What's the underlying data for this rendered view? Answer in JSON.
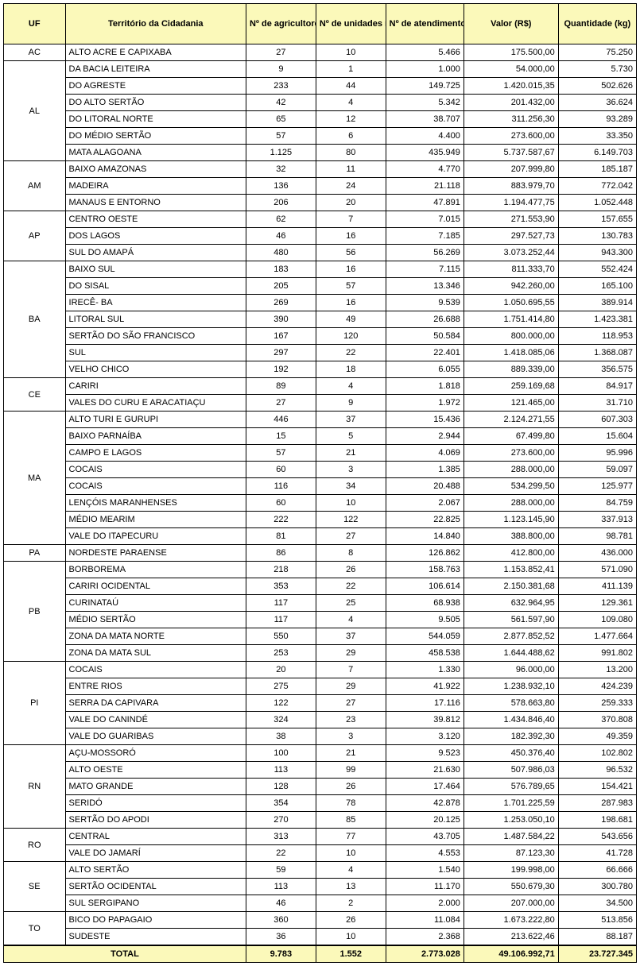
{
  "headers": {
    "uf": "UF",
    "territorio": "Território da Cidadania",
    "agricultores": "Nº de agricultores",
    "unidades": "Nº de unidades recebedoras",
    "atendimentos": "Nº de atendimentos",
    "valor": "Valor (R$)",
    "quantidade": "Quantidade (kg)"
  },
  "groups": [
    {
      "uf": "AC",
      "rows": [
        {
          "ter": "ALTO ACRE E CAPIXABA",
          "ag": "27",
          "un": "10",
          "at": "5.466",
          "va": "175.500,00",
          "qt": "75.250"
        }
      ]
    },
    {
      "uf": "AL",
      "rows": [
        {
          "ter": "DA BACIA LEITEIRA",
          "ag": "9",
          "un": "1",
          "at": "1.000",
          "va": "54.000,00",
          "qt": "5.730"
        },
        {
          "ter": "DO AGRESTE",
          "ag": "233",
          "un": "44",
          "at": "149.725",
          "va": "1.420.015,35",
          "qt": "502.626"
        },
        {
          "ter": "DO ALTO SERTÃO",
          "ag": "42",
          "un": "4",
          "at": "5.342",
          "va": "201.432,00",
          "qt": "36.624"
        },
        {
          "ter": "DO LITORAL NORTE",
          "ag": "65",
          "un": "12",
          "at": "38.707",
          "va": "311.256,30",
          "qt": "93.289"
        },
        {
          "ter": "DO MÉDIO SERTÃO",
          "ag": "57",
          "un": "6",
          "at": "4.400",
          "va": "273.600,00",
          "qt": "33.350"
        },
        {
          "ter": "MATA ALAGOANA",
          "ag": "1.125",
          "un": "80",
          "at": "435.949",
          "va": "5.737.587,67",
          "qt": "6.149.703"
        }
      ]
    },
    {
      "uf": "AM",
      "rows": [
        {
          "ter": "BAIXO AMAZONAS",
          "ag": "32",
          "un": "11",
          "at": "4.770",
          "va": "207.999,80",
          "qt": "185.187"
        },
        {
          "ter": "MADEIRA",
          "ag": "136",
          "un": "24",
          "at": "21.118",
          "va": "883.979,70",
          "qt": "772.042"
        },
        {
          "ter": "MANAUS E ENTORNO",
          "ag": "206",
          "un": "20",
          "at": "47.891",
          "va": "1.194.477,75",
          "qt": "1.052.448"
        }
      ]
    },
    {
      "uf": "AP",
      "rows": [
        {
          "ter": "CENTRO OESTE",
          "ag": "62",
          "un": "7",
          "at": "7.015",
          "va": "271.553,90",
          "qt": "157.655"
        },
        {
          "ter": "DOS LAGOS",
          "ag": "46",
          "un": "16",
          "at": "7.185",
          "va": "297.527,73",
          "qt": "130.783"
        },
        {
          "ter": "SUL DO AMAPÁ",
          "ag": "480",
          "un": "56",
          "at": "56.269",
          "va": "3.073.252,44",
          "qt": "943.300"
        }
      ]
    },
    {
      "uf": "BA",
      "rows": [
        {
          "ter": "BAIXO SUL",
          "ag": "183",
          "un": "16",
          "at": "7.115",
          "va": "811.333,70",
          "qt": "552.424"
        },
        {
          "ter": "DO SISAL",
          "ag": "205",
          "un": "57",
          "at": "13.346",
          "va": "942.260,00",
          "qt": "165.100"
        },
        {
          "ter": "IRECÊ- BA",
          "ag": "269",
          "un": "16",
          "at": "9.539",
          "va": "1.050.695,55",
          "qt": "389.914"
        },
        {
          "ter": "LITORAL SUL",
          "ag": "390",
          "un": "49",
          "at": "26.688",
          "va": "1.751.414,80",
          "qt": "1.423.381"
        },
        {
          "ter": "SERTÃO DO SÃO FRANCISCO",
          "ag": "167",
          "un": "120",
          "at": "50.584",
          "va": "800.000,00",
          "qt": "118.953"
        },
        {
          "ter": "SUL",
          "ag": "297",
          "un": "22",
          "at": "22.401",
          "va": "1.418.085,06",
          "qt": "1.368.087"
        },
        {
          "ter": "VELHO CHICO",
          "ag": "192",
          "un": "18",
          "at": "6.055",
          "va": "889.339,00",
          "qt": "356.575"
        }
      ]
    },
    {
      "uf": "CE",
      "rows": [
        {
          "ter": "CARIRI",
          "ag": "89",
          "un": "4",
          "at": "1.818",
          "va": "259.169,68",
          "qt": "84.917"
        },
        {
          "ter": "VALES DO CURU E ARACATIAÇU",
          "ag": "27",
          "un": "9",
          "at": "1.972",
          "va": "121.465,00",
          "qt": "31.710"
        }
      ]
    },
    {
      "uf": "MA",
      "rows": [
        {
          "ter": "ALTO TURI E GURUPI",
          "ag": "446",
          "un": "37",
          "at": "15.436",
          "va": "2.124.271,55",
          "qt": "607.303"
        },
        {
          "ter": "BAIXO PARNAÍBA",
          "ag": "15",
          "un": "5",
          "at": "2.944",
          "va": "67.499,80",
          "qt": "15.604"
        },
        {
          "ter": "CAMPO E LAGOS",
          "ag": "57",
          "un": "21",
          "at": "4.069",
          "va": "273.600,00",
          "qt": "95.996"
        },
        {
          "ter": "COCAIS",
          "ag": "60",
          "un": "3",
          "at": "1.385",
          "va": "288.000,00",
          "qt": "59.097"
        },
        {
          "ter": "COCAIS",
          "ag": "116",
          "un": "34",
          "at": "20.488",
          "va": "534.299,50",
          "qt": "125.977"
        },
        {
          "ter": "LENÇÓIS MARANHENSES",
          "ag": "60",
          "un": "10",
          "at": "2.067",
          "va": "288.000,00",
          "qt": "84.759"
        },
        {
          "ter": "MÉDIO MEARIM",
          "ag": "222",
          "un": "122",
          "at": "22.825",
          "va": "1.123.145,90",
          "qt": "337.913"
        },
        {
          "ter": "VALE DO ITAPECURU",
          "ag": "81",
          "un": "27",
          "at": "14.840",
          "va": "388.800,00",
          "qt": "98.781"
        }
      ]
    },
    {
      "uf": "PA",
      "rows": [
        {
          "ter": "NORDESTE PARAENSE",
          "ag": "86",
          "un": "8",
          "at": "126.862",
          "va": "412.800,00",
          "qt": "436.000"
        }
      ]
    },
    {
      "uf": "PB",
      "rows": [
        {
          "ter": "BORBOREMA",
          "ag": "218",
          "un": "26",
          "at": "158.763",
          "va": "1.153.852,41",
          "qt": "571.090"
        },
        {
          "ter": "CARIRI OCIDENTAL",
          "ag": "353",
          "un": "22",
          "at": "106.614",
          "va": "2.150.381,68",
          "qt": "411.139"
        },
        {
          "ter": "CURINATAÚ",
          "ag": "117",
          "un": "25",
          "at": "68.938",
          "va": "632.964,95",
          "qt": "129.361"
        },
        {
          "ter": "MÉDIO SERTÃO",
          "ag": "117",
          "un": "4",
          "at": "9.505",
          "va": "561.597,90",
          "qt": "109.080"
        },
        {
          "ter": "ZONA DA MATA NORTE",
          "ag": "550",
          "un": "37",
          "at": "544.059",
          "va": "2.877.852,52",
          "qt": "1.477.664"
        },
        {
          "ter": "ZONA DA MATA SUL",
          "ag": "253",
          "un": "29",
          "at": "458.538",
          "va": "1.644.488,62",
          "qt": "991.802"
        }
      ]
    },
    {
      "uf": "PI",
      "rows": [
        {
          "ter": "COCAIS",
          "ag": "20",
          "un": "7",
          "at": "1.330",
          "va": "96.000,00",
          "qt": "13.200"
        },
        {
          "ter": "ENTRE RIOS",
          "ag": "275",
          "un": "29",
          "at": "41.922",
          "va": "1.238.932,10",
          "qt": "424.239"
        },
        {
          "ter": "SERRA DA CAPIVARA",
          "ag": "122",
          "un": "27",
          "at": "17.116",
          "va": "578.663,80",
          "qt": "259.333"
        },
        {
          "ter": "VALE DO CANINDÉ",
          "ag": "324",
          "un": "23",
          "at": "39.812",
          "va": "1.434.846,40",
          "qt": "370.808"
        },
        {
          "ter": "VALE DO GUARIBAS",
          "ag": "38",
          "un": "3",
          "at": "3.120",
          "va": "182.392,30",
          "qt": "49.359"
        }
      ]
    },
    {
      "uf": "RN",
      "rows": [
        {
          "ter": "AÇU-MOSSORÓ",
          "ag": "100",
          "un": "21",
          "at": "9.523",
          "va": "450.376,40",
          "qt": "102.802"
        },
        {
          "ter": "ALTO OESTE",
          "ag": "113",
          "un": "99",
          "at": "21.630",
          "va": "507.986,03",
          "qt": "96.532"
        },
        {
          "ter": "MATO GRANDE",
          "ag": "128",
          "un": "26",
          "at": "17.464",
          "va": "576.789,65",
          "qt": "154.421"
        },
        {
          "ter": "SERIDÓ",
          "ag": "354",
          "un": "78",
          "at": "42.878",
          "va": "1.701.225,59",
          "qt": "287.983"
        },
        {
          "ter": "SERTÃO DO APODI",
          "ag": "270",
          "un": "85",
          "at": "20.125",
          "va": "1.253.050,10",
          "qt": "198.681"
        }
      ]
    },
    {
      "uf": "RO",
      "rows": [
        {
          "ter": "CENTRAL",
          "ag": "313",
          "un": "77",
          "at": "43.705",
          "va": "1.487.584,22",
          "qt": "543.656"
        },
        {
          "ter": "VALE DO JAMARÍ",
          "ag": "22",
          "un": "10",
          "at": "4.553",
          "va": "87.123,30",
          "qt": "41.728"
        }
      ]
    },
    {
      "uf": "SE",
      "rows": [
        {
          "ter": "ALTO SERTÃO",
          "ag": "59",
          "un": "4",
          "at": "1.540",
          "va": "199.998,00",
          "qt": "66.666"
        },
        {
          "ter": "SERTÃO OCIDENTAL",
          "ag": "113",
          "un": "13",
          "at": "11.170",
          "va": "550.679,30",
          "qt": "300.780"
        },
        {
          "ter": "SUL SERGIPANO",
          "ag": "46",
          "un": "2",
          "at": "2.000",
          "va": "207.000,00",
          "qt": "34.500"
        }
      ]
    },
    {
      "uf": "TO",
      "rows": [
        {
          "ter": "BICO DO PAPAGAIO",
          "ag": "360",
          "un": "26",
          "at": "11.084",
          "va": "1.673.222,80",
          "qt": "513.856"
        },
        {
          "ter": "SUDESTE",
          "ag": "36",
          "un": "10",
          "at": "2.368",
          "va": "213.622,46",
          "qt": "88.187"
        }
      ]
    }
  ],
  "total": {
    "label": "TOTAL",
    "ag": "9.783",
    "un": "1.552",
    "at": "2.773.028",
    "va": "49.106.992,71",
    "qt": "23.727.345"
  }
}
